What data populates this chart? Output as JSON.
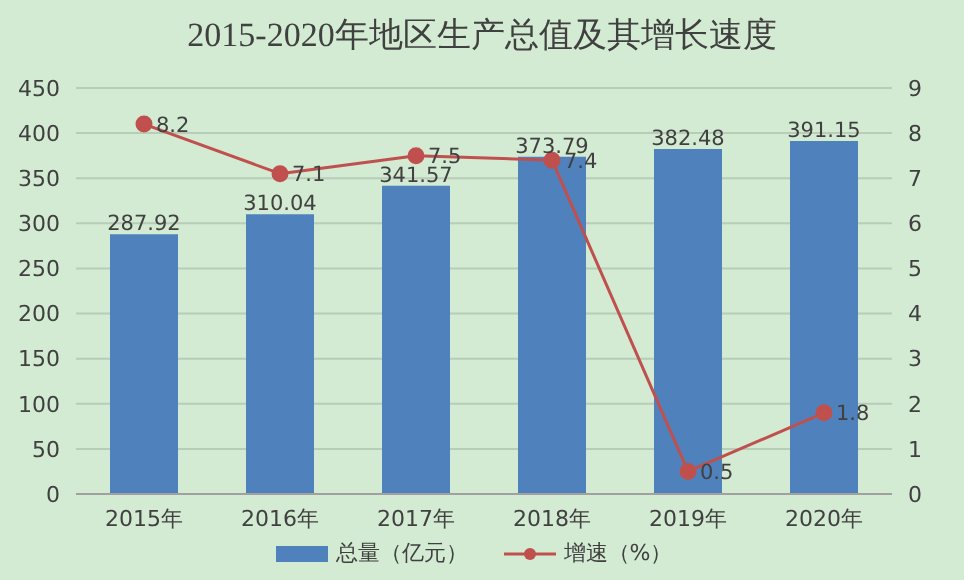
{
  "chart_data": {
    "type": "bar",
    "title": "2015-2020年地区生产总值及其增长速度",
    "categories": [
      "2015年",
      "2016年",
      "2017年",
      "2018年",
      "2019年",
      "2020年"
    ],
    "series": [
      {
        "name": "总量（亿元）",
        "color": "#4f81bd",
        "values": [
          287.92,
          310.04,
          341.57,
          373.79,
          382.48,
          391.15
        ]
      },
      {
        "name": "增速（%）",
        "type": "line",
        "axis": "y2",
        "color": "#c0504d",
        "values": [
          8.2,
          7.1,
          7.5,
          7.4,
          0.5,
          1.8
        ]
      }
    ],
    "ylim": [
      0,
      450
    ],
    "yticks": [
      0,
      50,
      100,
      150,
      200,
      250,
      300,
      350,
      400,
      450
    ],
    "y2lim": [
      0,
      9
    ],
    "y2ticks": [
      0,
      1,
      2,
      3,
      4,
      5,
      6,
      7,
      8,
      9
    ],
    "grid": "y",
    "legend": "bottom",
    "marker": "circle",
    "data_labels": true
  }
}
